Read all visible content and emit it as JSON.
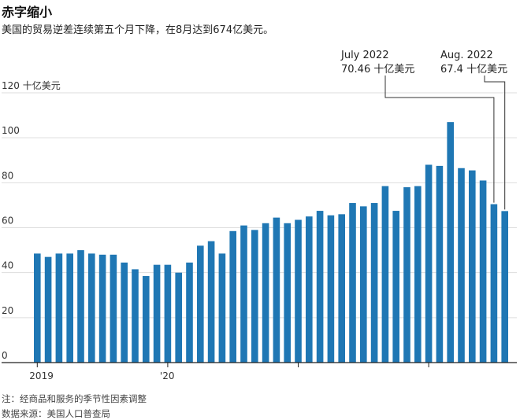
{
  "title": "赤字缩小",
  "subtitle": "美国的贸易逆差连续第五个月下降，在8月达到674亿美元。",
  "note": "注：经商品和服务的季节性因素调整",
  "source": "数据来源：美国人口普查局",
  "chart_data": {
    "type": "bar",
    "ylim": [
      0,
      120
    ],
    "yticks": [
      0,
      20,
      40,
      60,
      80,
      100,
      120
    ],
    "ytick_labels": [
      "0",
      "20",
      "40",
      "60",
      "80",
      "100",
      "120 十亿美元"
    ],
    "xtick_labels": [
      {
        "index": 0,
        "label": "2019"
      },
      {
        "index": 12,
        "label": "'20"
      },
      {
        "index": 24,
        "label": ""
      },
      {
        "index": 36,
        "label": ""
      }
    ],
    "categories": [
      "2019-01",
      "2019-02",
      "2019-03",
      "2019-04",
      "2019-05",
      "2019-06",
      "2019-07",
      "2019-08",
      "2019-09",
      "2019-10",
      "2019-11",
      "2019-12",
      "2020-01",
      "2020-02",
      "2020-03",
      "2020-04",
      "2020-05",
      "2020-06",
      "2020-07",
      "2020-08",
      "2020-09",
      "2020-10",
      "2020-11",
      "2020-12",
      "2021-01",
      "2021-02",
      "2021-03",
      "2021-04",
      "2021-05",
      "2021-06",
      "2021-07",
      "2021-08",
      "2021-09",
      "2021-10",
      "2021-11",
      "2021-12",
      "2022-01",
      "2022-02",
      "2022-03",
      "2022-04",
      "2022-05",
      "2022-06",
      "2022-07",
      "2022-08"
    ],
    "values": [
      48.5,
      47,
      48.5,
      48.5,
      50,
      48.5,
      48,
      48,
      44.5,
      41.5,
      38.5,
      43.5,
      43.5,
      40,
      44.5,
      52,
      54,
      48.5,
      58.5,
      61,
      59,
      62,
      64.5,
      62,
      63.5,
      65,
      67.5,
      65.5,
      66,
      71,
      69.5,
      71,
      78.5,
      67.5,
      78,
      78.5,
      88,
      87.5,
      107,
      86.5,
      85.5,
      81,
      70.46,
      67.4
    ],
    "color": "#1f77b4",
    "annotations": [
      {
        "index": 42,
        "line1": "July 2022",
        "line2": "70.46 十亿美元"
      },
      {
        "index": 43,
        "line1": "Aug. 2022",
        "line2": "67.4 十亿美元"
      }
    ]
  }
}
